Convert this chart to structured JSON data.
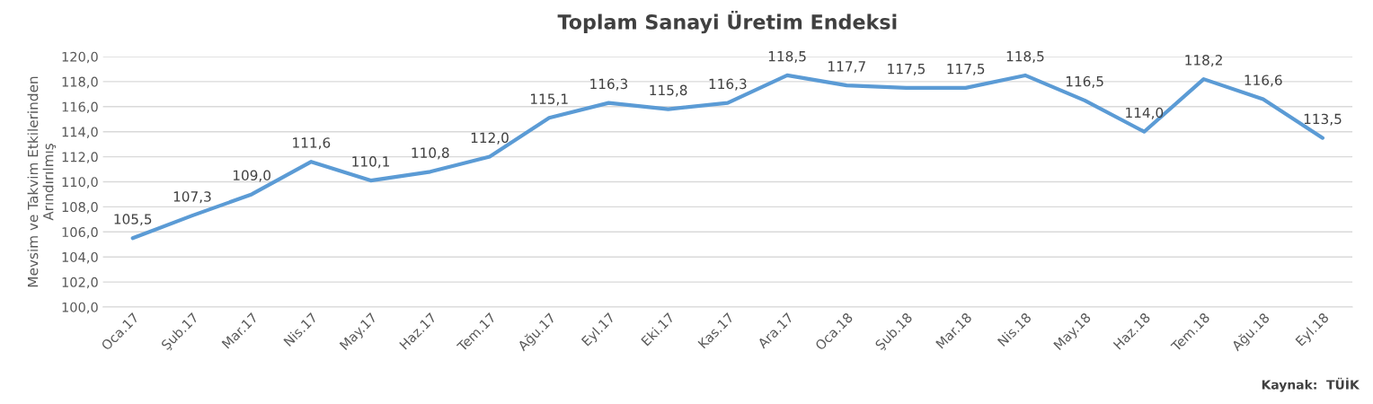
{
  "chart_data": {
    "type": "line",
    "title": "Toplam Sanayi Üretim Endeksi",
    "ylabel": "Mevsim ve Takvim Etkilerinden\nArındırılmış",
    "categories": [
      "Oca.17",
      "Şub.17",
      "Mar.17",
      "Nis.17",
      "May.17",
      "Haz.17",
      "Tem.17",
      "Ağu.17",
      "Eyl.17",
      "Eki.17",
      "Kas.17",
      "Ara.17",
      "Oca.18",
      "Şub.18",
      "Mar.18",
      "Nis.18",
      "May.18",
      "Haz.18",
      "Tem.18",
      "Ağu.18",
      "Eyl.18"
    ],
    "series": [
      {
        "color": "#5b9bd5",
        "values": [
          105.5,
          107.3,
          109.0,
          111.6,
          110.1,
          110.8,
          112.0,
          115.1,
          116.3,
          115.8,
          116.3,
          118.5,
          117.7,
          117.5,
          117.5,
          118.5,
          116.5,
          114.0,
          118.2,
          116.6,
          113.5
        ],
        "value_labels": [
          "105,5",
          "107,3",
          "109,0",
          "111,6",
          "110,1",
          "110,8",
          "112,0",
          "115,1",
          "116,3",
          "115,8",
          "116,3",
          "118,5",
          "117,7",
          "117,5",
          "117,5",
          "118,5",
          "116,5",
          "114,0",
          "118,2",
          "116,6",
          "113,5"
        ]
      }
    ],
    "ylim": [
      100,
      120
    ],
    "yticks": [
      {
        "value": 100,
        "label": "100,0"
      },
      {
        "value": 102,
        "label": "102,0"
      },
      {
        "value": 104,
        "label": "104,0"
      },
      {
        "value": 106,
        "label": "106,0"
      },
      {
        "value": 108,
        "label": "108,0"
      },
      {
        "value": 110,
        "label": "110,0"
      },
      {
        "value": 112,
        "label": "112,0"
      },
      {
        "value": 114,
        "label": "114,0"
      },
      {
        "value": 116,
        "label": "116,0"
      },
      {
        "value": 118,
        "label": "118,0"
      },
      {
        "value": 120,
        "label": "120,0"
      }
    ],
    "grid": "y",
    "marker": "none",
    "line_style": "solid",
    "annotations": [
      "Kaynak:  TÜİK"
    ]
  }
}
